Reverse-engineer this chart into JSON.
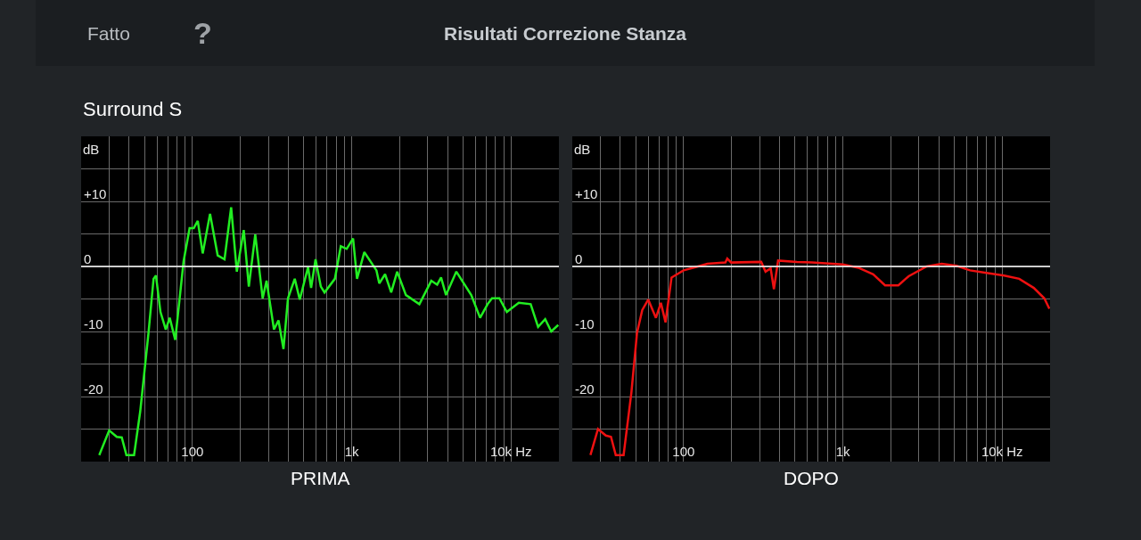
{
  "chart_data": [
    {
      "type": "line",
      "title": "Risultati Correzione Stanza",
      "subtitle": "Surround S",
      "annotations": [
        "Fatto",
        "?"
      ],
      "xlabel": "PRIMA",
      "ylabel": "dB",
      "log": "x",
      "grid": true,
      "x": [
        26,
        30,
        33.5,
        36,
        38.5,
        43,
        47,
        53,
        57,
        59,
        63,
        68,
        72,
        78,
        88,
        96,
        102,
        108,
        116,
        129,
        144,
        159,
        175,
        190,
        210,
        226,
        248,
        276,
        292,
        325,
        347,
        373,
        398,
        439,
        472,
        532,
        556,
        593,
        640,
        675,
        784,
        854,
        930,
        1020,
        1080,
        1200,
        1430,
        1490,
        1620,
        1770,
        1930,
        2190,
        2660,
        3160,
        3440,
        3640,
        3910,
        4540,
        5630,
        6400,
        7130,
        7600,
        8460,
        9420,
        11200,
        13300,
        14800,
        16400,
        17900,
        19800
      ],
      "series": [
        {
          "color": "#22ee22",
          "values": [
            -29,
            -25.2,
            -26.2,
            -26.3,
            -29,
            -29,
            -22.3,
            -10.2,
            -1.9,
            -1.4,
            -7.0,
            -9.7,
            -7.9,
            -11.3,
            0.8,
            5.9,
            5.9,
            7.0,
            2.0,
            8.1,
            1.7,
            1.1,
            9.1,
            -0.8,
            5.6,
            -3.1,
            4.9,
            -4.9,
            -2.2,
            -9.7,
            -8.3,
            -12.7,
            -4.9,
            -1.9,
            -5.1,
            -0.1,
            -3.3,
            1.1,
            -3.1,
            -4.0,
            -1.9,
            3.1,
            2.7,
            4.3,
            -1.9,
            2.2,
            -0.6,
            -2.6,
            -1.2,
            -4.0,
            -0.8,
            -4.4,
            -5.8,
            -2.2,
            -2.8,
            -1.7,
            -4.4,
            -0.8,
            -4.4,
            -7.9,
            -5.8,
            -4.9,
            -4.9,
            -7.0,
            -5.6,
            -5.8,
            -9.3,
            -8.1,
            -10.0,
            -9.0
          ]
        }
      ],
      "xlim": [
        20,
        20000
      ],
      "ylim": [
        -30,
        20
      ],
      "xticks": [
        {
          "value": 30,
          "label": null
        },
        {
          "value": 40,
          "label": null
        },
        {
          "value": 50,
          "label": null
        },
        {
          "value": 60,
          "label": null
        },
        {
          "value": 70,
          "label": null
        },
        {
          "value": 80,
          "label": null
        },
        {
          "value": 90,
          "label": null
        },
        100,
        {
          "value": 200,
          "label": null
        },
        {
          "value": 300,
          "label": null
        },
        {
          "value": 400,
          "label": null
        },
        {
          "value": 500,
          "label": null
        },
        {
          "value": 600,
          "label": null
        },
        {
          "value": 700,
          "label": null
        },
        {
          "value": 800,
          "label": null
        },
        {
          "value": 900,
          "label": null
        },
        {
          "value": 1000,
          "label": "1k"
        },
        {
          "value": 2000,
          "label": null
        },
        {
          "value": 3000,
          "label": null
        },
        {
          "value": 4000,
          "label": null
        },
        {
          "value": 5000,
          "label": null
        },
        {
          "value": 6000,
          "label": null
        },
        {
          "value": 7000,
          "label": null
        },
        {
          "value": 8000,
          "label": null
        },
        {
          "value": 9000,
          "label": null
        },
        {
          "value": 10000,
          "label": "10k Hz"
        }
      ],
      "yticks": [
        {
          "value": 15,
          "label": null
        },
        {
          "value": 10,
          "label": "+10"
        },
        {
          "value": 5,
          "label": null
        },
        0,
        {
          "value": -5,
          "label": null
        },
        -10,
        {
          "value": -15,
          "label": null
        },
        -20,
        {
          "value": -25,
          "label": null
        }
      ],
      "ref_lines": [
        {
          "axis": "y",
          "value": 0,
          "color": "#ffffff"
        }
      ]
    },
    {
      "type": "line",
      "xlabel": "DOPO",
      "ylabel": "dB",
      "log": "x",
      "grid": true,
      "x": [
        26,
        29,
        32.5,
        35,
        37.5,
        42,
        47,
        51,
        55,
        60,
        67,
        72,
        77,
        84,
        100,
        119,
        141,
        183,
        188,
        199,
        307,
        327,
        352,
        369,
        392,
        515,
        638,
        1000,
        1250,
        1550,
        1840,
        2230,
        2590,
        3360,
        4170,
        5170,
        6280,
        7960,
        10300,
        12800,
        15800,
        18400,
        19800
      ],
      "series": [
        {
          "color": "#ee1111",
          "values": [
            -29,
            -25.0,
            -26.0,
            -26.2,
            -29,
            -29,
            -19.4,
            -10.2,
            -6.7,
            -5.1,
            -7.9,
            -5.6,
            -8.6,
            -1.7,
            -0.6,
            -0.1,
            0.4,
            0.6,
            1.2,
            0.6,
            0.7,
            -0.8,
            -0.3,
            -3.5,
            0.9,
            0.7,
            0.6,
            0.3,
            -0.2,
            -1.2,
            -2.9,
            -2.9,
            -1.5,
            0,
            0.4,
            0.1,
            -0.6,
            -1.0,
            -1.4,
            -1.9,
            -3.3,
            -4.9,
            -6.5
          ]
        }
      ],
      "xlim": [
        20,
        20000
      ],
      "ylim": [
        -30,
        20
      ],
      "xticks": [
        {
          "value": 30,
          "label": null
        },
        {
          "value": 40,
          "label": null
        },
        {
          "value": 50,
          "label": null
        },
        {
          "value": 60,
          "label": null
        },
        {
          "value": 70,
          "label": null
        },
        {
          "value": 80,
          "label": null
        },
        {
          "value": 90,
          "label": null
        },
        100,
        {
          "value": 200,
          "label": null
        },
        {
          "value": 300,
          "label": null
        },
        {
          "value": 400,
          "label": null
        },
        {
          "value": 500,
          "label": null
        },
        {
          "value": 600,
          "label": null
        },
        {
          "value": 700,
          "label": null
        },
        {
          "value": 800,
          "label": null
        },
        {
          "value": 900,
          "label": null
        },
        {
          "value": 1000,
          "label": "1k"
        },
        {
          "value": 2000,
          "label": null
        },
        {
          "value": 3000,
          "label": null
        },
        {
          "value": 4000,
          "label": null
        },
        {
          "value": 5000,
          "label": null
        },
        {
          "value": 6000,
          "label": null
        },
        {
          "value": 7000,
          "label": null
        },
        {
          "value": 8000,
          "label": null
        },
        {
          "value": 9000,
          "label": null
        },
        {
          "value": 10000,
          "label": "10k Hz"
        }
      ],
      "yticks": [
        {
          "value": 15,
          "label": null
        },
        {
          "value": 10,
          "label": "+10"
        },
        {
          "value": 5,
          "label": null
        },
        0,
        {
          "value": -5,
          "label": null
        },
        -10,
        {
          "value": -15,
          "label": null
        },
        -20,
        {
          "value": -25,
          "label": null
        }
      ],
      "ref_lines": [
        {
          "axis": "y",
          "value": 0,
          "color": "#ffffff"
        }
      ]
    }
  ]
}
